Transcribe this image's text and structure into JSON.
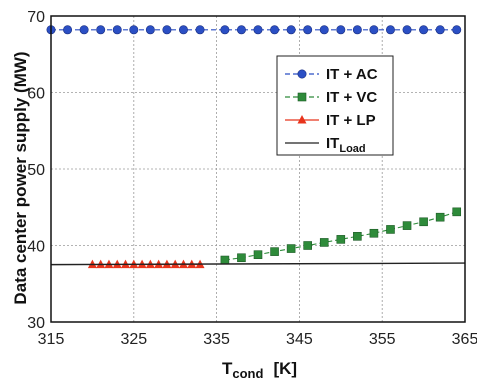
{
  "chart_data": {
    "type": "line",
    "title": "",
    "xlabel": {
      "main": "T",
      "sub": "cond",
      "unit": "[K]"
    },
    "ylabel": "Data center power supply (MW)",
    "xlim": [
      315,
      365
    ],
    "ylim": [
      30,
      70
    ],
    "xticks": [
      "315",
      "325",
      "335",
      "345",
      "355",
      "365"
    ],
    "yticks": [
      "30",
      "40",
      "50",
      "60",
      "70"
    ],
    "xtick_values": [
      315,
      325,
      335,
      345,
      355,
      365
    ],
    "ytick_values": [
      30,
      40,
      50,
      60,
      70
    ],
    "grid": true,
    "legend_position": "upper-right",
    "series": [
      {
        "name": "IT + AC",
        "marker": "circle",
        "color": "#2b4fc4",
        "line": "dashed",
        "points": [
          [
            315,
            68.2
          ],
          [
            317,
            68.2
          ],
          [
            319,
            68.2
          ],
          [
            321,
            68.2
          ],
          [
            323,
            68.2
          ],
          [
            325,
            68.2
          ],
          [
            327,
            68.2
          ],
          [
            329,
            68.2
          ],
          [
            331,
            68.2
          ],
          [
            333,
            68.2
          ],
          [
            336,
            68.2
          ],
          [
            338,
            68.2
          ],
          [
            340,
            68.2
          ],
          [
            342,
            68.2
          ],
          [
            344,
            68.2
          ],
          [
            346,
            68.2
          ],
          [
            348,
            68.2
          ],
          [
            350,
            68.2
          ],
          [
            352,
            68.2
          ],
          [
            354,
            68.2
          ],
          [
            356,
            68.2
          ],
          [
            358,
            68.2
          ],
          [
            360,
            68.2
          ],
          [
            362,
            68.2
          ],
          [
            364,
            68.2
          ]
        ]
      },
      {
        "name": "IT + VC",
        "marker": "square",
        "color": "#2e8b3a",
        "line": "dashed",
        "points": [
          [
            336,
            38.1
          ],
          [
            338,
            38.4
          ],
          [
            340,
            38.8
          ],
          [
            342,
            39.2
          ],
          [
            344,
            39.6
          ],
          [
            346,
            40.0
          ],
          [
            348,
            40.4
          ],
          [
            350,
            40.8
          ],
          [
            352,
            41.2
          ],
          [
            354,
            41.6
          ],
          [
            356,
            42.1
          ],
          [
            358,
            42.6
          ],
          [
            360,
            43.1
          ],
          [
            362,
            43.7
          ],
          [
            364,
            44.4
          ]
        ]
      },
      {
        "name": "IT + LP",
        "marker": "triangle",
        "color": "#e8341c",
        "line": "solid",
        "points": [
          [
            320,
            37.5
          ],
          [
            321,
            37.5
          ],
          [
            322,
            37.5
          ],
          [
            323,
            37.5
          ],
          [
            324,
            37.5
          ],
          [
            325,
            37.5
          ],
          [
            326,
            37.5
          ],
          [
            327,
            37.5
          ],
          [
            328,
            37.5
          ],
          [
            329,
            37.5
          ],
          [
            330,
            37.5
          ],
          [
            331,
            37.5
          ],
          [
            332,
            37.5
          ],
          [
            333,
            37.5
          ]
        ]
      },
      {
        "name": "IT",
        "name_sub": "Load",
        "marker": "none",
        "color": "#222222",
        "line": "solid",
        "points": [
          [
            315,
            37.5
          ],
          [
            365,
            37.7
          ]
        ]
      }
    ]
  }
}
